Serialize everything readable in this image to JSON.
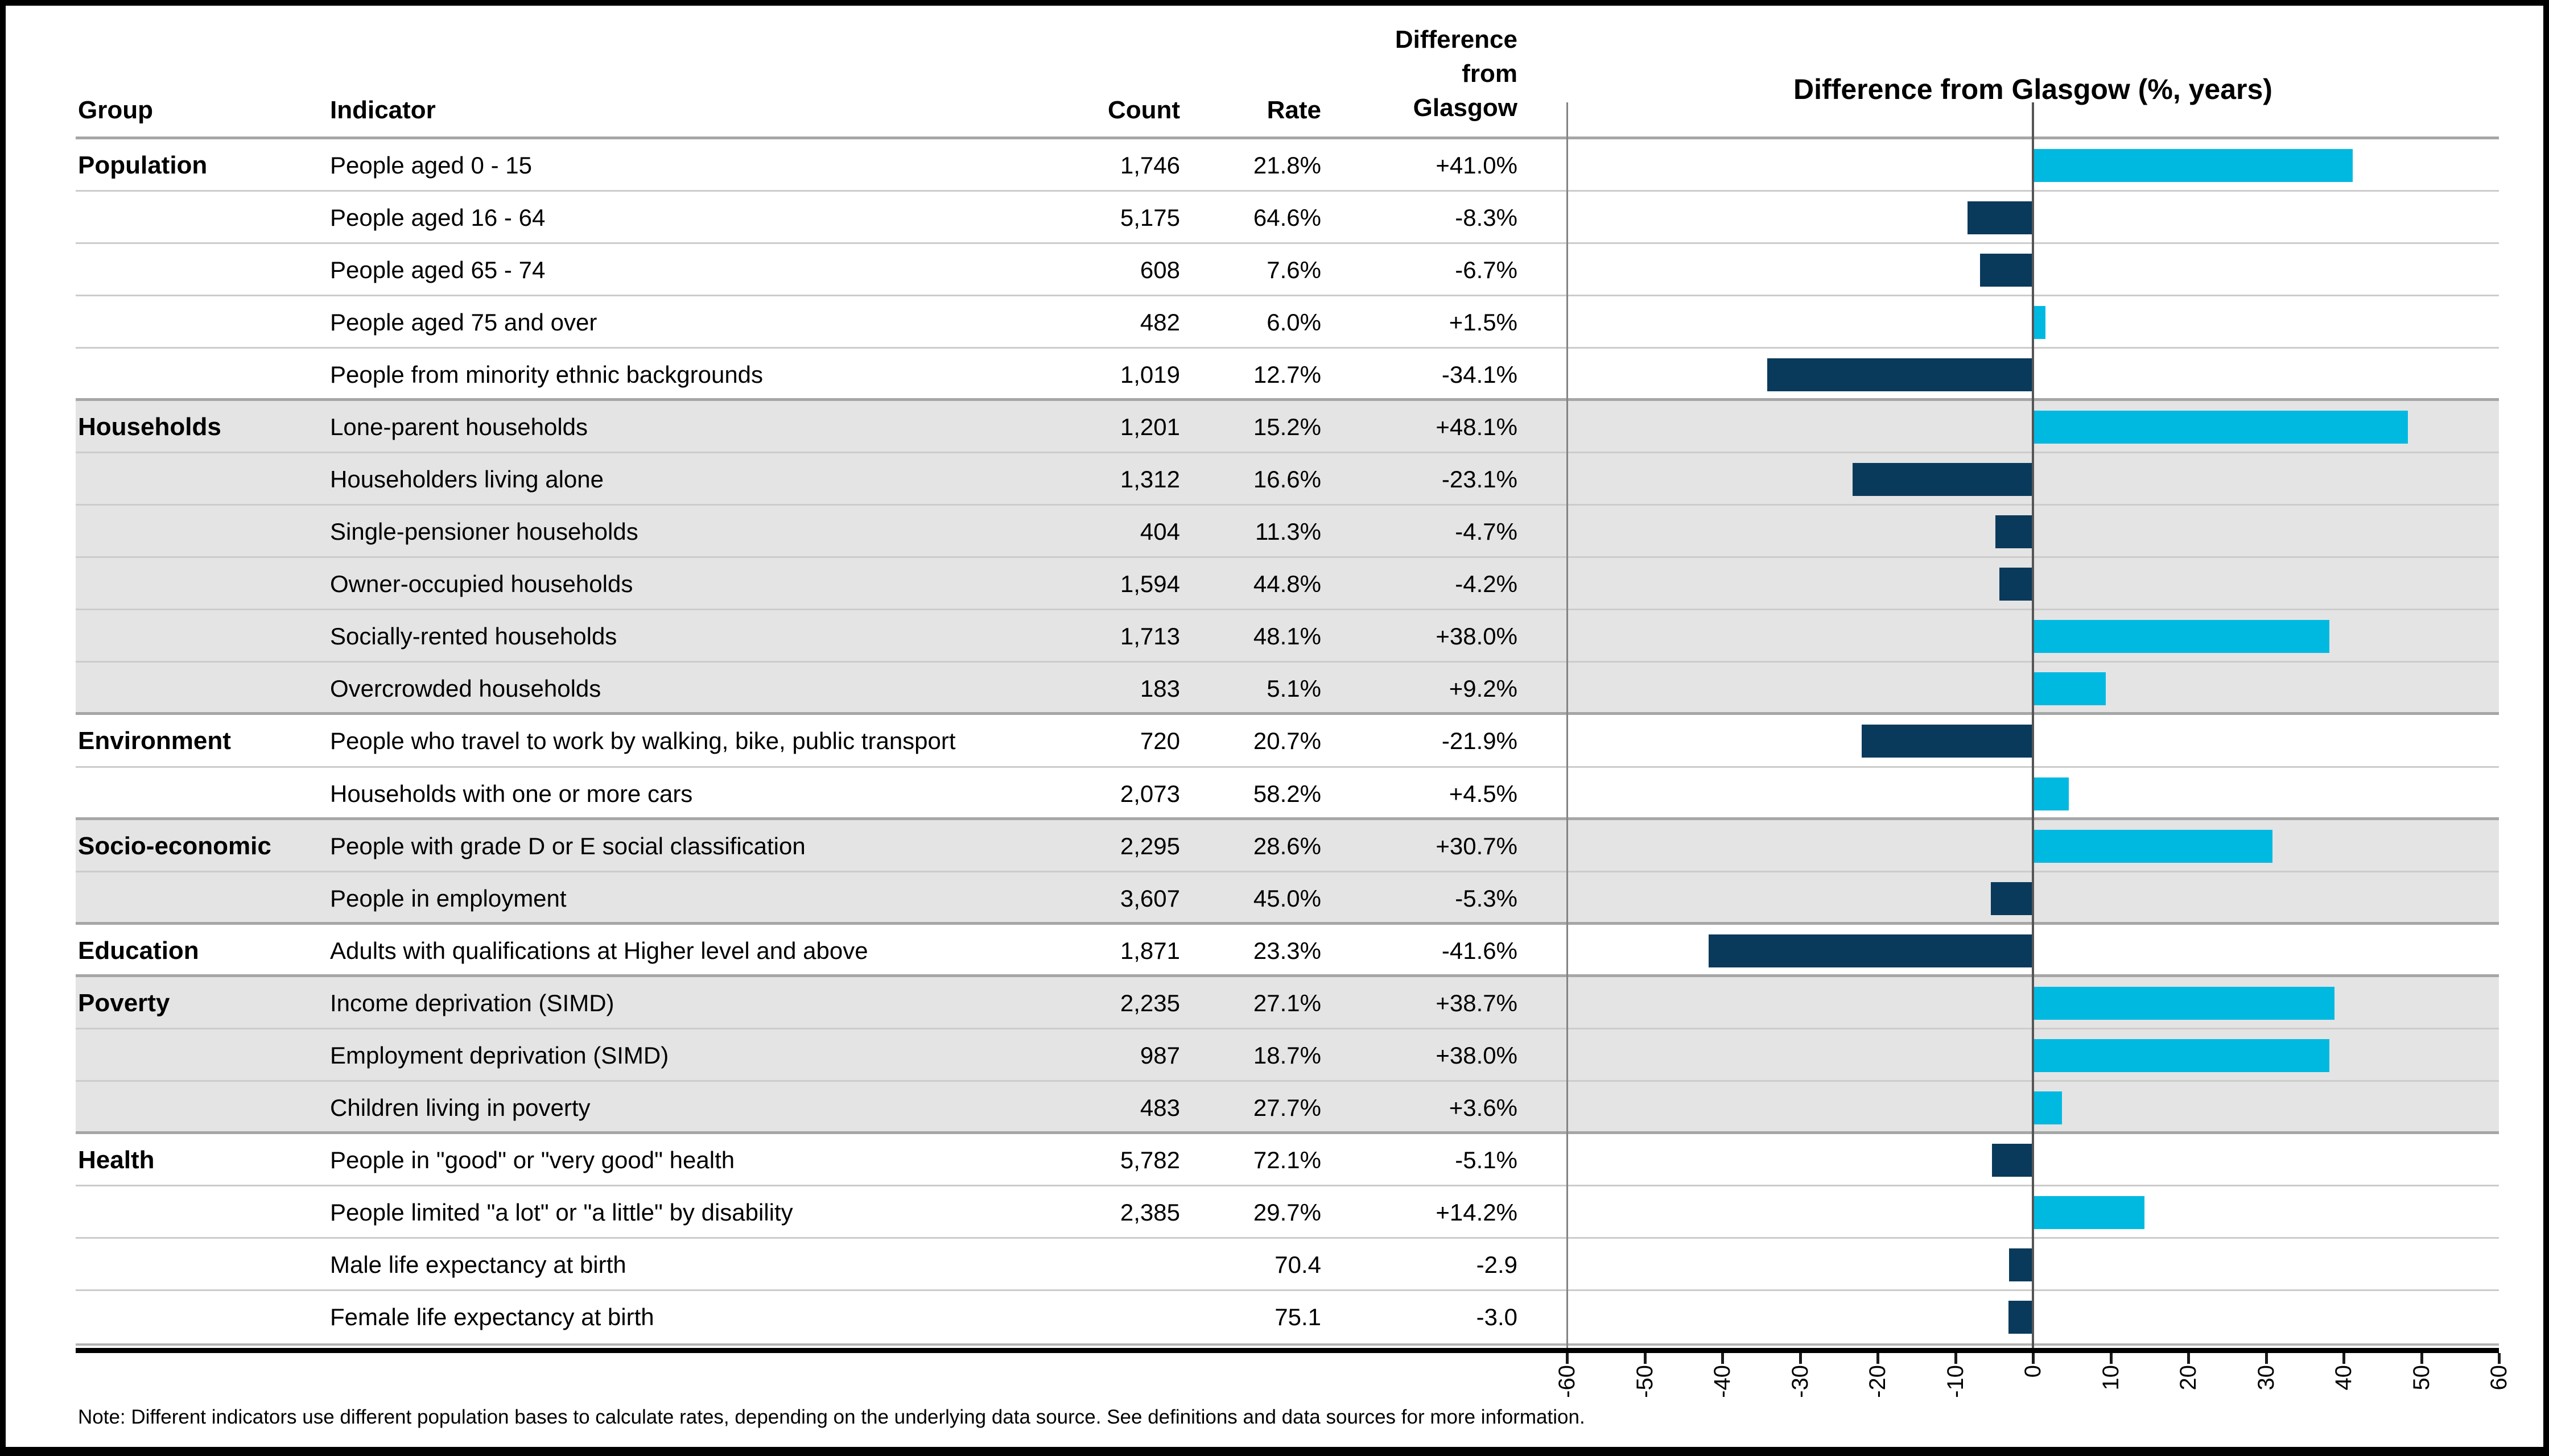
{
  "header": {
    "group": "Group",
    "indicator": "Indicator",
    "count": "Count",
    "rate": "Rate",
    "difference": "Difference\nfrom\nGlasgow"
  },
  "chart": {
    "title": "Difference from Glasgow (%, years)",
    "axis_ticks": [
      -60,
      -50,
      -40,
      -30,
      -20,
      -10,
      0,
      10,
      20,
      30,
      40,
      50,
      60
    ],
    "bar_positive_color": "#00b9e1",
    "bar_negative_color": "#0a3a5b",
    "shaded_band_color": "#e4e4e4"
  },
  "table": {
    "groups": [
      {
        "name": "Population",
        "shaded": false,
        "rows": [
          {
            "indicator": "People aged 0 - 15",
            "count": "1,746",
            "rate": "21.8%",
            "difference": "+41.0%",
            "value": 41.0
          },
          {
            "indicator": "People aged 16 - 64",
            "count": "5,175",
            "rate": "64.6%",
            "difference": "-8.3%",
            "value": -8.3
          },
          {
            "indicator": "People aged 65 - 74",
            "count": "608",
            "rate": "7.6%",
            "difference": "-6.7%",
            "value": -6.7
          },
          {
            "indicator": "People aged 75 and over",
            "count": "482",
            "rate": "6.0%",
            "difference": "+1.5%",
            "value": 1.5
          },
          {
            "indicator": "People from minority ethnic backgrounds",
            "count": "1,019",
            "rate": "12.7%",
            "difference": "-34.1%",
            "value": -34.1
          }
        ]
      },
      {
        "name": "Households",
        "shaded": true,
        "rows": [
          {
            "indicator": "Lone-parent households",
            "count": "1,201",
            "rate": "15.2%",
            "difference": "+48.1%",
            "value": 48.1
          },
          {
            "indicator": "Householders living alone",
            "count": "1,312",
            "rate": "16.6%",
            "difference": "-23.1%",
            "value": -23.1
          },
          {
            "indicator": "Single-pensioner households",
            "count": "404",
            "rate": "11.3%",
            "difference": "-4.7%",
            "value": -4.7
          },
          {
            "indicator": "Owner-occupied households",
            "count": "1,594",
            "rate": "44.8%",
            "difference": "-4.2%",
            "value": -4.2
          },
          {
            "indicator": "Socially-rented households",
            "count": "1,713",
            "rate": "48.1%",
            "difference": "+38.0%",
            "value": 38.0
          },
          {
            "indicator": "Overcrowded households",
            "count": "183",
            "rate": "5.1%",
            "difference": "+9.2%",
            "value": 9.2
          }
        ]
      },
      {
        "name": "Environment",
        "shaded": false,
        "rows": [
          {
            "indicator": "People who travel to work by walking, bike, public transport",
            "count": "720",
            "rate": "20.7%",
            "difference": "-21.9%",
            "value": -21.9
          },
          {
            "indicator": "Households with one or more cars",
            "count": "2,073",
            "rate": "58.2%",
            "difference": "+4.5%",
            "value": 4.5
          }
        ]
      },
      {
        "name": "Socio-economic",
        "shaded": true,
        "rows": [
          {
            "indicator": "People with grade D or E social classification",
            "count": "2,295",
            "rate": "28.6%",
            "difference": "+30.7%",
            "value": 30.7
          },
          {
            "indicator": "People in employment",
            "count": "3,607",
            "rate": "45.0%",
            "difference": "-5.3%",
            "value": -5.3
          }
        ]
      },
      {
        "name": "Education",
        "shaded": false,
        "rows": [
          {
            "indicator": "Adults with qualifications at Higher level and above",
            "count": "1,871",
            "rate": "23.3%",
            "difference": "-41.6%",
            "value": -41.6
          }
        ]
      },
      {
        "name": "Poverty",
        "shaded": true,
        "rows": [
          {
            "indicator": "Income deprivation (SIMD)",
            "count": "2,235",
            "rate": "27.1%",
            "difference": "+38.7%",
            "value": 38.7
          },
          {
            "indicator": "Employment deprivation (SIMD)",
            "count": "987",
            "rate": "18.7%",
            "difference": "+38.0%",
            "value": 38.0
          },
          {
            "indicator": "Children living in poverty",
            "count": "483",
            "rate": "27.7%",
            "difference": "+3.6%",
            "value": 3.6
          }
        ]
      },
      {
        "name": "Health",
        "shaded": false,
        "rows": [
          {
            "indicator": "People in \"good\" or \"very good\" health",
            "count": "5,782",
            "rate": "72.1%",
            "difference": "-5.1%",
            "value": -5.1
          },
          {
            "indicator": "People limited \"a lot\" or \"a little\" by disability",
            "count": "2,385",
            "rate": "29.7%",
            "difference": "+14.2%",
            "value": 14.2
          },
          {
            "indicator": "Male life expectancy at birth",
            "count": "",
            "rate": "70.4",
            "difference": "-2.9",
            "value": -2.9
          },
          {
            "indicator": "Female life expectancy at birth",
            "count": "",
            "rate": "75.1",
            "difference": "-3.0",
            "value": -3.0
          }
        ]
      }
    ]
  },
  "chart_data": {
    "type": "bar",
    "orientation": "horizontal",
    "title": "Difference from Glasgow (%, years)",
    "xlabel": "",
    "ylabel": "",
    "xlim": [
      -60,
      60
    ],
    "grid": "zero-line-only",
    "legend": "none",
    "categories": [
      "People aged 0 - 15",
      "People aged 16 - 64",
      "People aged 65 - 74",
      "People aged 75 and over",
      "People from minority ethnic backgrounds",
      "Lone-parent households",
      "Householders living alone",
      "Single-pensioner households",
      "Owner-occupied households",
      "Socially-rented households",
      "Overcrowded households",
      "People who travel to work by walking, bike, public transport",
      "Households with one or more cars",
      "People with grade D or E social classification",
      "People in employment",
      "Adults with qualifications at Higher level and above",
      "Income deprivation (SIMD)",
      "Employment deprivation (SIMD)",
      "Children living in poverty",
      "People in \"good\" or \"very good\" health",
      "People limited \"a lot\" or \"a little\" by disability",
      "Male life expectancy at birth",
      "Female life expectancy at birth"
    ],
    "values": [
      41.0,
      -8.3,
      -6.7,
      1.5,
      -34.1,
      48.1,
      -23.1,
      -4.7,
      -4.2,
      38.0,
      9.2,
      -21.9,
      4.5,
      30.7,
      -5.3,
      -41.6,
      38.7,
      38.0,
      3.6,
      -5.1,
      14.2,
      -2.9,
      -3.0
    ]
  },
  "note": "Note: Different indicators use different population bases to calculate rates, depending on the underlying data source. See definitions and data sources for more information."
}
